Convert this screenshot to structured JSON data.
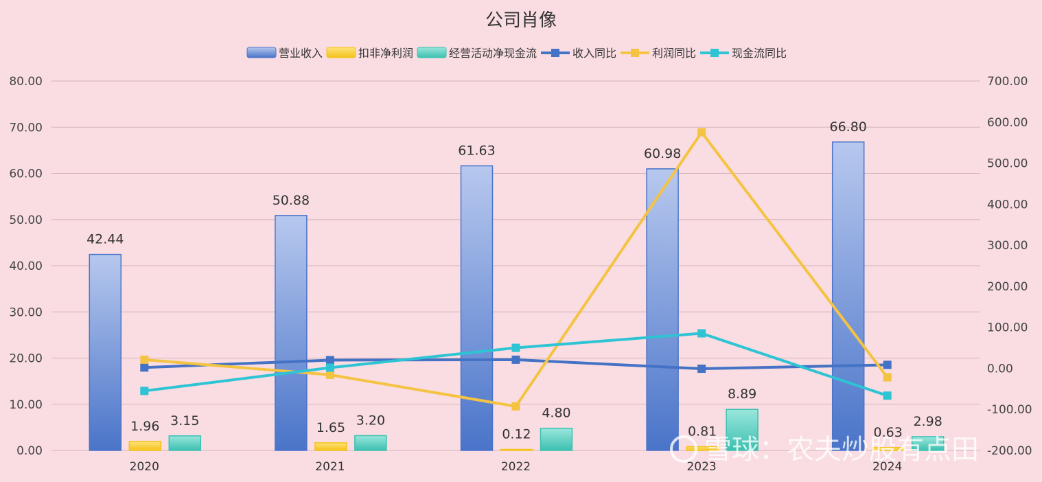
{
  "chart_data": {
    "type": "bar",
    "title": "公司肖像",
    "categories": [
      "2020",
      "2021",
      "2022",
      "2023",
      "2024"
    ],
    "bar_series": [
      {
        "name": "营业收入",
        "values": [
          42.44,
          50.88,
          61.63,
          60.98,
          66.8
        ],
        "labels": [
          "42.44",
          "50.88",
          "61.63",
          "60.98",
          "66.80"
        ],
        "color": "#4a74c9",
        "color_top": "#b7c8ee"
      },
      {
        "name": "扣非净利润",
        "values": [
          1.96,
          1.65,
          0.12,
          0.81,
          0.63
        ],
        "labels": [
          "1.96",
          "1.65",
          "0.12",
          "0.81",
          "0.63"
        ],
        "color": "#f3c21b",
        "color_top": "#ffe27a"
      },
      {
        "name": "经营活动净现金流",
        "values": [
          3.15,
          3.2,
          4.8,
          8.89,
          2.98
        ],
        "labels": [
          "3.15",
          "3.20",
          "4.80",
          "8.89",
          "2.98"
        ],
        "color": "#3cc0b0",
        "color_top": "#9ae6dc"
      }
    ],
    "line_series": [
      {
        "name": "收入同比",
        "values": [
          2.0,
          20.0,
          21.0,
          -1.0,
          8.5
        ],
        "color": "#4472c4"
      },
      {
        "name": "利润同比",
        "values": [
          21.0,
          -15.8,
          -92.7,
          575.0,
          -22.0
        ],
        "color": "#f5c342"
      },
      {
        "name": "现金流同比",
        "values": [
          -55.0,
          1.6,
          50.0,
          85.2,
          -66.5
        ],
        "color": "#2ec4d4"
      }
    ],
    "y_left": {
      "min": 0,
      "max": 80,
      "step": 10,
      "decimals": 2
    },
    "y_right": {
      "min": -200,
      "max": 700,
      "step": 100,
      "decimals": 2
    },
    "legend_position": "top-center",
    "grid": true
  },
  "watermark": {
    "text": "雪球：农夫炒股有点田"
  }
}
